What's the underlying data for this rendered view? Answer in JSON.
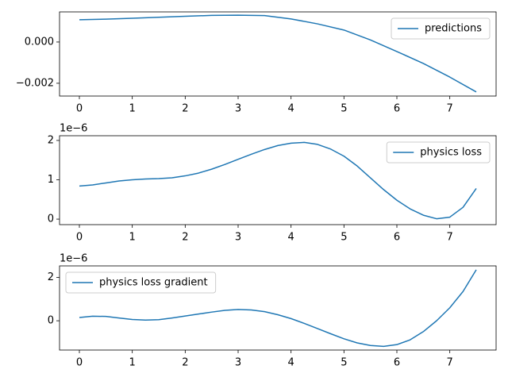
{
  "chart_data": [
    {
      "type": "line",
      "x": [
        0,
        0.5,
        1,
        1.5,
        2,
        2.5,
        3,
        3.5,
        4,
        4.5,
        5,
        5.5,
        6,
        6.5,
        7,
        7.5
      ],
      "series": [
        {
          "name": "predictions",
          "color": "#1f77b4",
          "values": [
            0.00108,
            0.00111,
            0.00115,
            0.0012,
            0.00125,
            0.00129,
            0.0013,
            0.00128,
            0.00112,
            0.00088,
            0.00058,
            0.0001,
            -0.00046,
            -0.00104,
            -0.0017,
            -0.00242
          ]
        }
      ],
      "xlim": [
        -0.375,
        7.875
      ],
      "ylim": [
        -0.00262,
        0.00146
      ],
      "xticks": [
        0,
        1,
        2,
        3,
        4,
        5,
        6,
        7
      ],
      "yticks": [
        {
          "value": -0.002,
          "label": "−0.002"
        },
        {
          "value": 0,
          "label": "0.000"
        }
      ],
      "legend": "upper right"
    },
    {
      "type": "line",
      "x": [
        0,
        0.25,
        0.5,
        0.75,
        1,
        1.25,
        1.5,
        1.75,
        2,
        2.25,
        2.5,
        2.75,
        3,
        3.25,
        3.5,
        3.75,
        4,
        4.25,
        4.5,
        4.75,
        5,
        5.25,
        5.5,
        5.75,
        6,
        6.25,
        6.5,
        6.75,
        7,
        7.25,
        7.5
      ],
      "series": [
        {
          "name": "physics loss",
          "color": "#1f77b4",
          "values": [
            0.84,
            0.87,
            0.92,
            0.97,
            1.0,
            1.02,
            1.03,
            1.05,
            1.1,
            1.17,
            1.27,
            1.39,
            1.52,
            1.65,
            1.77,
            1.87,
            1.93,
            1.95,
            1.9,
            1.78,
            1.6,
            1.35,
            1.05,
            0.75,
            0.48,
            0.26,
            0.1,
            0.01,
            0.05,
            0.3,
            0.78
          ]
        }
      ],
      "xlim": [
        -0.375,
        7.875
      ],
      "ylim": [
        -0.14,
        2.12
      ],
      "xticks": [
        0,
        1,
        2,
        3,
        4,
        5,
        6,
        7
      ],
      "yticks": [
        0,
        1,
        2
      ],
      "offset_text": "1e−6",
      "legend": "upper right"
    },
    {
      "type": "line",
      "x": [
        0,
        0.25,
        0.5,
        0.75,
        1,
        1.25,
        1.5,
        1.75,
        2,
        2.25,
        2.5,
        2.75,
        3,
        3.25,
        3.5,
        3.75,
        4,
        4.25,
        4.5,
        4.75,
        5,
        5.25,
        5.5,
        5.75,
        6,
        6.25,
        6.5,
        6.75,
        7,
        7.25,
        7.5
      ],
      "series": [
        {
          "name": "physics loss gradient",
          "color": "#1f77b4",
          "values": [
            0.15,
            0.21,
            0.2,
            0.13,
            0.06,
            0.03,
            0.05,
            0.13,
            0.22,
            0.31,
            0.4,
            0.48,
            0.52,
            0.5,
            0.42,
            0.28,
            0.1,
            -0.12,
            -0.36,
            -0.6,
            -0.83,
            -1.02,
            -1.14,
            -1.18,
            -1.1,
            -0.88,
            -0.5,
            0.0,
            0.6,
            1.35,
            2.35
          ]
        }
      ],
      "xlim": [
        -0.375,
        7.875
      ],
      "ylim": [
        -1.35,
        2.53
      ],
      "xticks": [
        0,
        1,
        2,
        3,
        4,
        5,
        6,
        7
      ],
      "yticks": [
        0,
        2
      ],
      "offset_text": "1e−6",
      "legend": "upper left"
    }
  ]
}
